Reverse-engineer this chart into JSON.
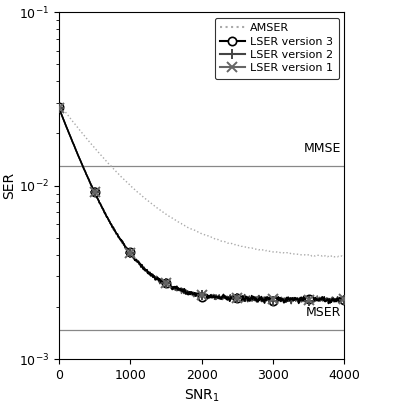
{
  "xlim": [
    0,
    4000
  ],
  "ylim": [
    0.001,
    0.1
  ],
  "xlabel": "SNR$_1$",
  "ylabel": "SER",
  "mmse_level": 0.013,
  "mser_level": 0.00148,
  "mmse_label": "MMSE",
  "mser_label": "MSER",
  "marker_positions": [
    0,
    500,
    1000,
    1500,
    2000,
    2500,
    3000,
    3500,
    4000
  ],
  "legend_entries": [
    "AMSER",
    "LSER version 3",
    "LSER version 2",
    "LSER version 1"
  ],
  "lser_color": "#000000",
  "amser_color": "#aaaaaa",
  "ref_line_color": "#888888",
  "background_color": "#ffffff",
  "lser_noise_scale": 0.00012,
  "lser_noise_sigma": 3,
  "amser_noise_scale": 7e-05,
  "amser_noise_sigma": 6,
  "lser_tau": 380,
  "lser_floor": 0.0022,
  "lser_amp": 0.026,
  "amser_tau": 700,
  "amser_floor": 0.0038,
  "amser_amp": 0.026
}
